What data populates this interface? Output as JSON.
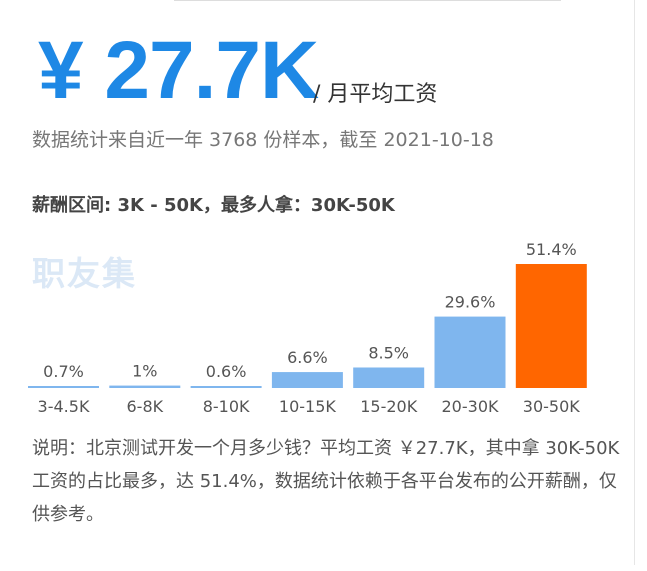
{
  "header": {
    "salary": "¥ 27.7K",
    "unit": "/ 月平均工资",
    "sample": "数据统计来自近一年 3768 份样本，截至 2021-10-18",
    "range": "薪酬区间: 3K - 50K，最多人拿：30K-50K"
  },
  "watermark": "职友集",
  "note": "说明：北京测试开发一个月多少钱？平均工资 ￥27.7K，其中拿 30K-50K 工资的占比最多，达 51.4%，数据统计依赖于各平台发布的公开薪酬，仅供参考。",
  "colors": {
    "accent": "#1e88e5",
    "bar": "#7fb6ee",
    "highlight": "#ff6600"
  },
  "chart_data": {
    "type": "bar",
    "categories": [
      "3-4.5K",
      "6-8K",
      "8-10K",
      "10-15K",
      "15-20K",
      "20-30K",
      "30-50K"
    ],
    "values": [
      0.7,
      1,
      0.6,
      6.6,
      8.5,
      29.6,
      51.4
    ],
    "value_labels": [
      "0.7%",
      "1%",
      "0.6%",
      "6.6%",
      "8.5%",
      "29.6%",
      "51.4%"
    ],
    "highlight_index": 6,
    "ylim": [
      0,
      51.4
    ],
    "grid": false
  }
}
